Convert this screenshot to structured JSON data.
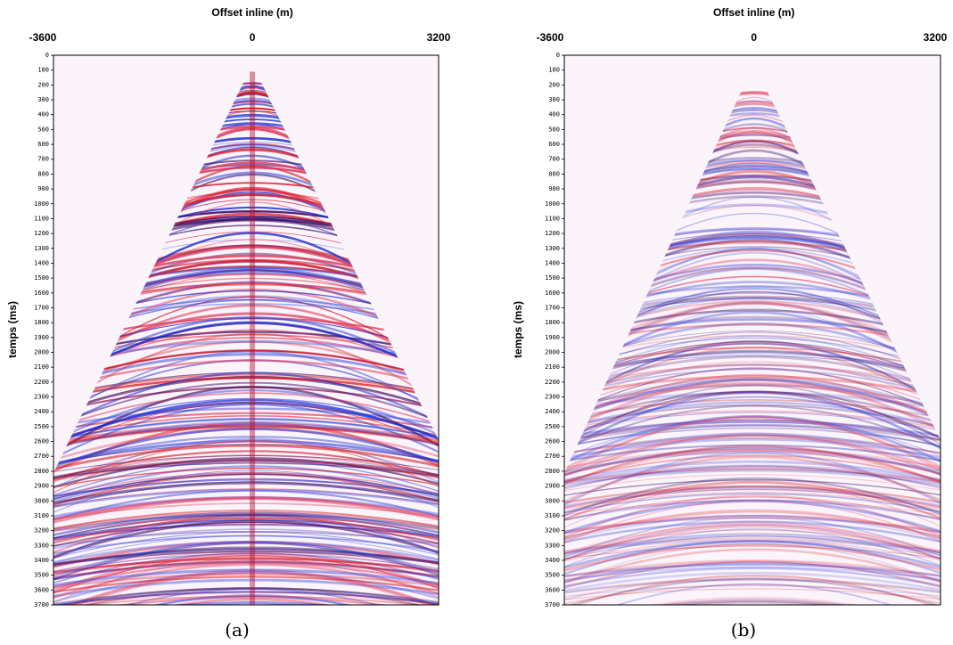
{
  "chart_data": [
    {
      "type": "seismic",
      "xlabel": "Offset inline (m)",
      "ylabel": "temps (ms)",
      "caption": "(a)",
      "xlim": [
        -3600,
        3200
      ],
      "xticks": [
        -3600,
        0,
        3200
      ],
      "ylim": [
        3700,
        0
      ],
      "yticks": [
        0,
        100,
        200,
        300,
        400,
        500,
        600,
        700,
        800,
        900,
        1000,
        1100,
        1200,
        1300,
        1400,
        1500,
        1600,
        1700,
        1800,
        1900,
        2000,
        2100,
        2200,
        2300,
        2400,
        2500,
        2600,
        2700,
        2800,
        2900,
        3000,
        3100,
        3200,
        3300,
        3400,
        3500,
        3600,
        3700
      ]
    },
    {
      "type": "seismic",
      "xlabel": "Offset inline (m)",
      "ylabel": "temps (ms)",
      "caption": "(b)",
      "xlim": [
        -3600,
        3200
      ],
      "xticks": [
        -3600,
        0,
        3200
      ],
      "ylim": [
        3700,
        0
      ],
      "yticks": [
        0,
        100,
        200,
        300,
        400,
        500,
        600,
        700,
        800,
        900,
        1000,
        1100,
        1200,
        1300,
        1400,
        1500,
        1600,
        1700,
        1800,
        1900,
        2000,
        2100,
        2200,
        2300,
        2400,
        2500,
        2600,
        2700,
        2800,
        2900,
        3000,
        3100,
        3200,
        3300,
        3400,
        3500,
        3600,
        3700
      ]
    }
  ]
}
